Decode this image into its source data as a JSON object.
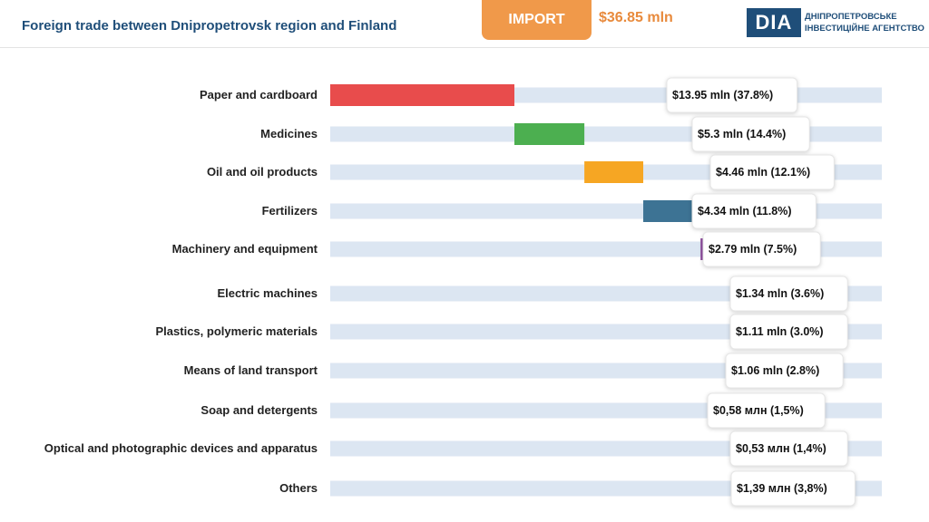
{
  "header": {
    "title": "Foreign trade between Dnipropetrovsk region and Finland",
    "import_label": "IMPORT",
    "total": "$36.85 mln",
    "logo_mark": "DIA",
    "logo_line1": "ДНІПРОПЕТРОВСЬКЕ",
    "logo_line2": "ІНВЕСТИЦІЙНЕ АГЕНТСТВО"
  },
  "colors": {
    "title": "#1f4e79",
    "accent": "#f0994a",
    "track": "#dce6f2"
  },
  "chart_data": {
    "type": "bar",
    "orientation": "horizontal",
    "style": "waterfall",
    "total": 36.85,
    "unit": "$ mln",
    "categories": [
      "Paper and cardboard",
      "Medicines",
      "Oil and oil products",
      "Fertilizers",
      "Machinery and equipment",
      "Electric machines",
      "Plastics, polymeric materials",
      "Means of land transport",
      "Soap and detergents",
      "Optical and photographic devices and apparatus",
      "Others"
    ],
    "values": [
      13.95,
      5.3,
      4.46,
      4.34,
      2.79,
      1.34,
      1.11,
      1.06,
      0.58,
      0.53,
      1.39
    ],
    "labels": [
      "$13.95 mln (37.8%)",
      "$5.3 mln (14.4%)",
      "$4.46 mln (12.1%)",
      "$4.34 mln (11.8%)",
      "$2.79 mln (7.5%)",
      "$1.34 mln (3.6%)",
      "$1.11 mln (3.0%)",
      "$1.06 mln (2.8%)",
      "$0,58 млн (1,5%)",
      "$0,53 млн (1,4%)",
      "$1,39 млн  (3,8%)"
    ],
    "colors": [
      "#e84c4c",
      "#4caf50",
      "#f6a623",
      "#3d7394",
      "#8e4b9e",
      "#3dbdb5",
      "#7b1f1f",
      "#c254a6",
      "#e07b3c",
      "#1f78c1",
      "#6d6d6d"
    ],
    "grid": false,
    "legend": "none"
  }
}
